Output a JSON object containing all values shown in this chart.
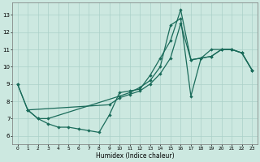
{
  "xlabel": "Humidex (Indice chaleur)",
  "xlim": [
    -0.5,
    23.5
  ],
  "ylim": [
    5.5,
    13.7
  ],
  "xticks": [
    0,
    1,
    2,
    3,
    4,
    5,
    6,
    7,
    8,
    9,
    10,
    11,
    12,
    13,
    14,
    15,
    16,
    17,
    18,
    19,
    20,
    21,
    22,
    23
  ],
  "yticks": [
    6,
    7,
    8,
    9,
    10,
    11,
    12,
    13
  ],
  "bg_color": "#cce8e0",
  "line_color": "#1a6b5a",
  "grid_color": "#aad0c8",
  "line1_x": [
    0,
    1,
    2,
    3,
    4,
    5,
    6,
    7,
    8,
    9,
    10,
    11,
    12,
    13,
    14,
    15,
    16,
    17,
    18,
    19,
    20,
    21,
    22,
    23
  ],
  "line1_y": [
    9.0,
    7.5,
    7.0,
    6.7,
    6.5,
    6.5,
    6.4,
    6.3,
    6.2,
    7.2,
    8.5,
    8.6,
    8.7,
    9.5,
    10.5,
    11.5,
    13.3,
    10.4,
    10.5,
    11.0,
    11.0,
    11.0,
    10.8,
    9.8
  ],
  "line2_x": [
    1,
    2,
    3,
    10,
    11,
    12,
    13,
    14,
    15,
    16,
    17,
    18,
    19,
    20,
    21,
    22,
    23
  ],
  "line2_y": [
    7.5,
    7.0,
    7.0,
    8.3,
    8.5,
    8.8,
    9.2,
    10.0,
    12.4,
    12.8,
    8.3,
    10.5,
    10.6,
    11.0,
    11.0,
    10.8,
    9.8
  ],
  "line3_x": [
    0,
    1,
    9,
    10,
    11,
    12,
    13,
    14,
    15,
    16,
    17,
    18,
    19,
    20,
    21,
    22,
    23
  ],
  "line3_y": [
    9.0,
    7.5,
    7.8,
    8.2,
    8.4,
    8.6,
    9.0,
    9.6,
    10.5,
    12.5,
    10.4,
    10.5,
    10.6,
    11.0,
    11.0,
    10.8,
    9.8
  ]
}
